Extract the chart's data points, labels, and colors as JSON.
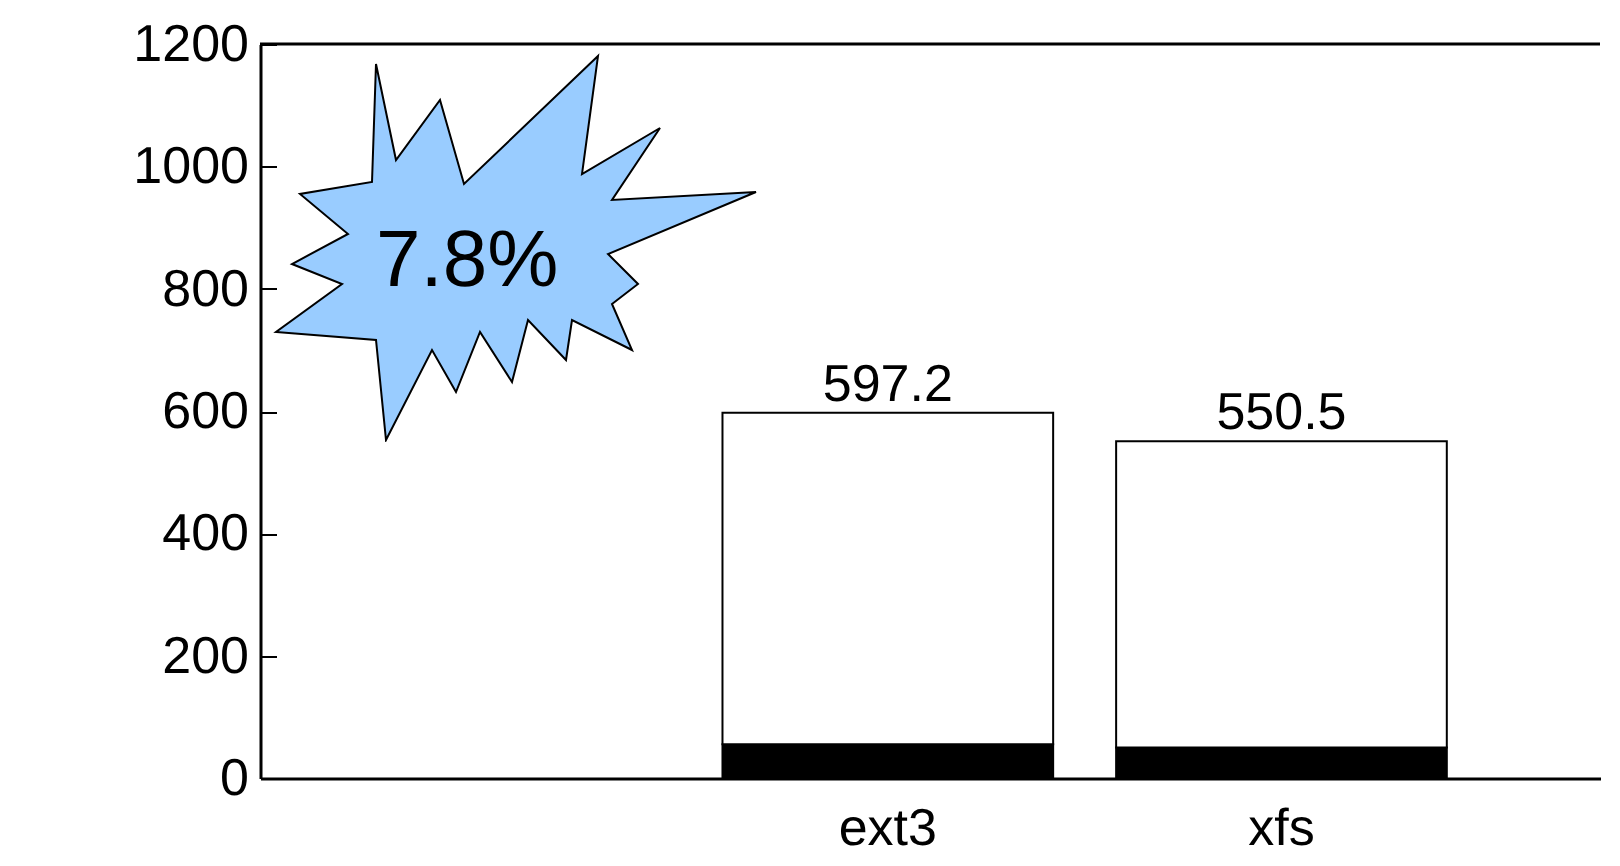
{
  "chart_data": {
    "type": "bar",
    "stacked": true,
    "categories": [
      null,
      "ext3",
      "xfs"
    ],
    "series": [
      {
        "color": "#000000",
        "values": [
          null,
          55,
          50
        ]
      },
      {
        "color": "#ffffff",
        "values": [
          null,
          542.2,
          500.5
        ]
      }
    ],
    "totals": [
      null,
      "597.2",
      "550.5"
    ],
    "ylim": [
      0,
      1200
    ],
    "yticks": [
      0,
      200,
      400,
      600,
      800,
      1000,
      1200
    ],
    "grid": false,
    "annotations": [
      "7.8%"
    ]
  }
}
